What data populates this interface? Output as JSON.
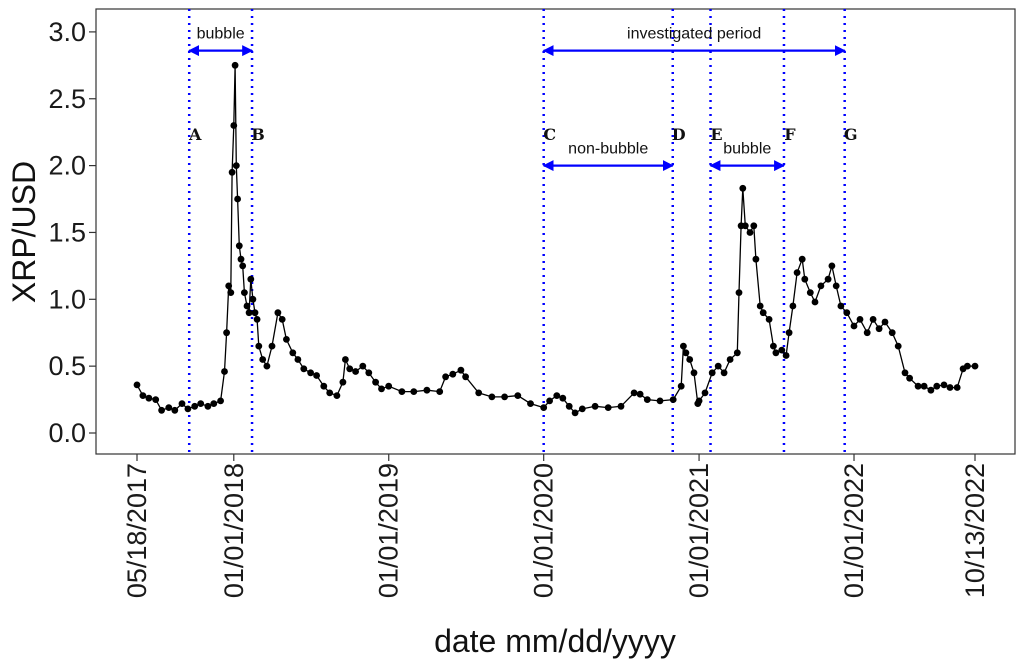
{
  "chart_data": {
    "type": "line",
    "xlabel": "date mm/dd/yyyy",
    "ylabel": "XRP/USD",
    "ylim": [
      0,
      3.0
    ],
    "yticks": [
      0.0,
      0.5,
      1.0,
      1.5,
      2.0,
      2.5,
      3.0
    ],
    "ytick_labels": [
      "0.0",
      "0.5",
      "1.0",
      "1.5",
      "2.0",
      "2.5",
      "3.0"
    ],
    "xlim": [
      "2017-05-18",
      "2022-10-13"
    ],
    "xticks": [
      "2017-05-18",
      "2018-01-01",
      "2019-01-01",
      "2020-01-01",
      "2021-01-01",
      "2022-01-01",
      "2022-10-13"
    ],
    "xtick_labels": [
      "05/18/2017",
      "01/01/2018",
      "01/01/2019",
      "01/01/2020",
      "01/01/2021",
      "01/01/2022",
      "10/13/2022"
    ],
    "grid": false,
    "line_color": "#000000",
    "marker_color": "#000000",
    "series": [
      {
        "x": [
          "2017-05-18",
          "2017-06-01",
          "2017-06-15",
          "2017-07-01",
          "2017-07-15",
          "2017-08-01",
          "2017-08-15",
          "2017-09-01",
          "2017-09-15",
          "2017-10-01",
          "2017-10-15",
          "2017-11-01",
          "2017-11-15",
          "2017-12-01",
          "2017-12-10",
          "2017-12-15",
          "2017-12-20",
          "2017-12-25",
          "2017-12-28",
          "2018-01-01",
          "2018-01-04",
          "2018-01-07",
          "2018-01-10",
          "2018-01-14",
          "2018-01-18",
          "2018-01-22",
          "2018-01-26",
          "2018-02-01",
          "2018-02-06",
          "2018-02-10",
          "2018-02-15",
          "2018-02-20",
          "2018-02-25",
          "2018-03-01",
          "2018-03-10",
          "2018-03-20",
          "2018-04-01",
          "2018-04-15",
          "2018-04-25",
          "2018-05-05",
          "2018-05-20",
          "2018-06-01",
          "2018-06-15",
          "2018-07-01",
          "2018-07-15",
          "2018-08-01",
          "2018-08-15",
          "2018-09-01",
          "2018-09-15",
          "2018-09-21",
          "2018-10-01",
          "2018-10-15",
          "2018-11-01",
          "2018-11-15",
          "2018-12-01",
          "2018-12-15",
          "2019-01-01",
          "2019-02-01",
          "2019-03-01",
          "2019-04-01",
          "2019-05-01",
          "2019-05-15",
          "2019-06-01",
          "2019-06-20",
          "2019-07-01",
          "2019-08-01",
          "2019-09-01",
          "2019-10-01",
          "2019-11-01",
          "2019-12-01",
          "2020-01-01",
          "2020-01-15",
          "2020-02-01",
          "2020-02-15",
          "2020-03-01",
          "2020-03-15",
          "2020-04-01",
          "2020-05-01",
          "2020-06-01",
          "2020-07-01",
          "2020-08-01",
          "2020-08-15",
          "2020-09-01",
          "2020-10-01",
          "2020-11-01",
          "2020-11-20",
          "2020-11-25",
          "2020-12-01",
          "2020-12-10",
          "2020-12-20",
          "2020-12-29",
          "2021-01-01",
          "2021-01-15",
          "2021-02-01",
          "2021-02-15",
          "2021-03-01",
          "2021-03-15",
          "2021-04-01",
          "2021-04-05",
          "2021-04-10",
          "2021-04-14",
          "2021-04-20",
          "2021-05-01",
          "2021-05-10",
          "2021-05-15",
          "2021-05-25",
          "2021-06-01",
          "2021-06-15",
          "2021-06-25",
          "2021-07-01",
          "2021-07-15",
          "2021-07-25",
          "2021-08-01",
          "2021-08-10",
          "2021-08-20",
          "2021-09-01",
          "2021-09-07",
          "2021-09-20",
          "2021-10-01",
          "2021-10-15",
          "2021-11-01",
          "2021-11-10",
          "2021-11-20",
          "2021-12-01",
          "2021-12-15",
          "2022-01-01",
          "2022-01-15",
          "2022-02-01",
          "2022-02-15",
          "2022-03-01",
          "2022-03-15",
          "2022-04-01",
          "2022-04-15",
          "2022-05-01",
          "2022-05-12",
          "2022-06-01",
          "2022-06-15",
          "2022-07-01",
          "2022-07-15",
          "2022-08-01",
          "2022-08-15",
          "2022-09-01",
          "2022-09-15",
          "2022-09-25",
          "2022-10-13"
        ],
        "y": [
          0.36,
          0.28,
          0.26,
          0.25,
          0.17,
          0.19,
          0.17,
          0.22,
          0.18,
          0.2,
          0.22,
          0.2,
          0.22,
          0.24,
          0.46,
          0.75,
          1.1,
          1.05,
          1.95,
          2.3,
          2.75,
          2.0,
          1.75,
          1.4,
          1.3,
          1.25,
          1.05,
          0.95,
          0.9,
          1.15,
          1.0,
          0.9,
          0.85,
          0.65,
          0.55,
          0.5,
          0.65,
          0.9,
          0.85,
          0.7,
          0.6,
          0.55,
          0.48,
          0.45,
          0.43,
          0.35,
          0.3,
          0.28,
          0.38,
          0.55,
          0.48,
          0.46,
          0.5,
          0.45,
          0.38,
          0.33,
          0.35,
          0.31,
          0.31,
          0.32,
          0.31,
          0.42,
          0.44,
          0.47,
          0.42,
          0.3,
          0.27,
          0.27,
          0.28,
          0.22,
          0.19,
          0.24,
          0.28,
          0.26,
          0.2,
          0.15,
          0.18,
          0.2,
          0.19,
          0.2,
          0.3,
          0.29,
          0.25,
          0.24,
          0.25,
          0.35,
          0.65,
          0.6,
          0.55,
          0.45,
          0.22,
          0.24,
          0.3,
          0.45,
          0.5,
          0.45,
          0.55,
          0.6,
          1.05,
          1.55,
          1.83,
          1.55,
          1.5,
          1.55,
          1.3,
          0.95,
          0.9,
          0.85,
          0.65,
          0.6,
          0.62,
          0.58,
          0.75,
          0.95,
          1.2,
          1.3,
          1.15,
          1.05,
          0.98,
          1.1,
          1.15,
          1.25,
          1.1,
          0.95,
          0.9,
          0.8,
          0.85,
          0.75,
          0.85,
          0.78,
          0.83,
          0.75,
          0.65,
          0.45,
          0.41,
          0.35,
          0.35,
          0.32,
          0.35,
          0.36,
          0.34,
          0.34,
          0.48,
          0.5,
          0.5
        ]
      }
    ],
    "vlines": [
      {
        "label": "A",
        "x": "2017-09-18",
        "color": "#0000ff"
      },
      {
        "label": "B",
        "x": "2018-02-13",
        "color": "#0000ff"
      },
      {
        "label": "C",
        "x": "2020-01-01",
        "color": "#0000ff"
      },
      {
        "label": "D",
        "x": "2020-10-31",
        "color": "#0000ff"
      },
      {
        "label": "E",
        "x": "2021-01-28",
        "color": "#0000ff"
      },
      {
        "label": "F",
        "x": "2021-07-20",
        "color": "#0000ff"
      },
      {
        "label": "G",
        "x": "2021-12-10",
        "color": "#0000ff"
      }
    ],
    "spans": [
      {
        "text": "bubble",
        "from": "2017-09-18",
        "to": "2018-02-13",
        "y": 2.86,
        "color": "#0000ff"
      },
      {
        "text": "investigated period",
        "from": "2020-01-01",
        "to": "2021-12-10",
        "y": 2.86,
        "color": "#0000ff"
      },
      {
        "text": "non-bubble",
        "from": "2020-01-01",
        "to": "2020-10-31",
        "y": 2.0,
        "color": "#0000ff"
      },
      {
        "text": "bubble",
        "from": "2021-01-28",
        "to": "2021-07-20",
        "y": 2.0,
        "color": "#0000ff"
      }
    ]
  }
}
